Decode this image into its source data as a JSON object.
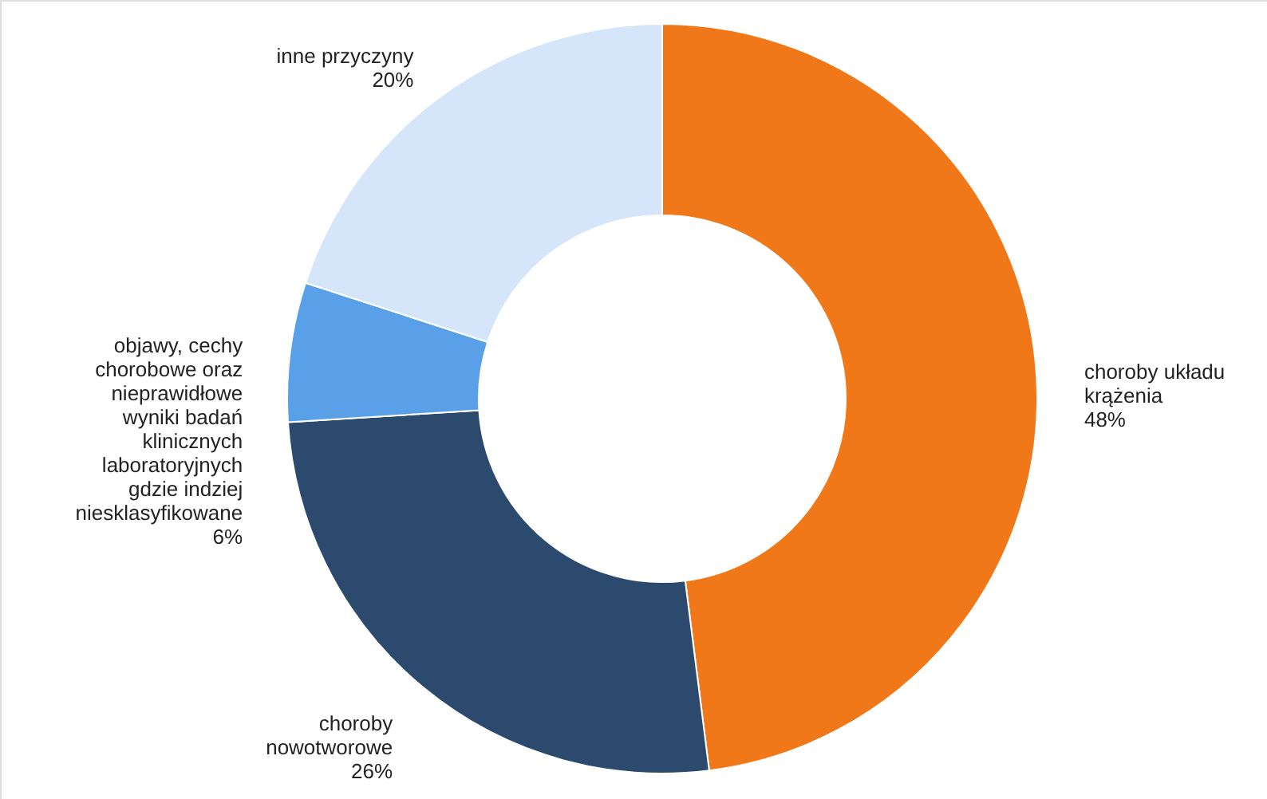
{
  "chart_data": {
    "type": "donut",
    "categories": [
      "choroby układu krążenia",
      "choroby nowotworowe",
      "objawy, cechy chorobowe oraz nieprawidłowe wyniki badań klinicznych laboratoryjnych gdzie indziej niesklasyfikowane",
      "inne przyczyny"
    ],
    "values": [
      48,
      26,
      6,
      20
    ],
    "value_labels": [
      "48%",
      "26%",
      "6%",
      "20%"
    ],
    "colors": [
      "#f07818",
      "#2c4a6e",
      "#5aa0e8",
      "#d6e6fa"
    ]
  }
}
